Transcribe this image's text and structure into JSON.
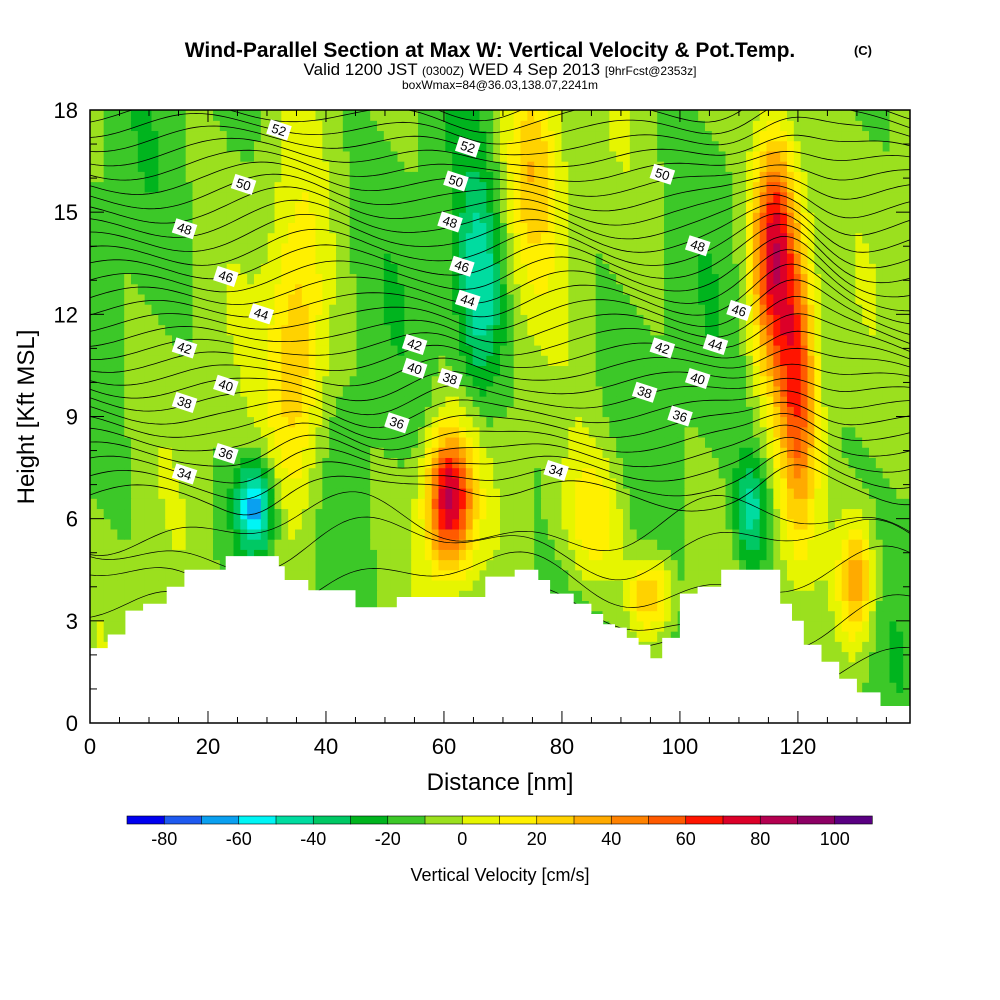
{
  "title": {
    "main": "Wind-Parallel Section at Max W: Vertical Velocity & Pot.Temp.",
    "copyright": "(C)",
    "valid_prefix": "Valid 1200 JST",
    "valid_z": "(0300Z)",
    "valid_date": "WED 4 Sep 2013",
    "fcst": "[9hrFcst@2353z]",
    "sub": "boxWmax=84@36.03,138.07,2241m"
  },
  "colorbar": {
    "label": "Vertical Velocity [cm/s]",
    "tick_labels": [
      "-80",
      "-60",
      "-40",
      "-20",
      "0",
      "20",
      "40",
      "60",
      "80",
      "100"
    ],
    "levels": [
      -80,
      -70,
      -60,
      -50,
      -40,
      -30,
      -20,
      -10,
      0,
      10,
      20,
      30,
      40,
      50,
      60,
      70,
      80,
      90,
      100,
      110
    ],
    "colors": [
      "#0000f0",
      "#1e5af0",
      "#0aa0f0",
      "#00f5f5",
      "#00dca0",
      "#00c864",
      "#00b41e",
      "#3cc828",
      "#9be01e",
      "#e6f500",
      "#fff000",
      "#ffd200",
      "#ffaa00",
      "#ff8200",
      "#ff5a00",
      "#ff1400",
      "#dc0028",
      "#b40050",
      "#8c0064",
      "#5a0082"
    ]
  },
  "chart_data": {
    "type": "heatmap",
    "xlabel": "Distance [nm]",
    "ylabel": "Height [Kft MSL]",
    "xlim": [
      0,
      139
    ],
    "ylim": [
      0,
      18
    ],
    "x_ticks": [
      "0",
      "20",
      "40",
      "60",
      "80",
      "100",
      "120"
    ],
    "y_ticks": [
      "0",
      "3",
      "6",
      "9",
      "12",
      "15",
      "18"
    ],
    "terrain": [
      [
        0,
        2.2
      ],
      [
        3,
        2.6
      ],
      [
        6,
        3.3
      ],
      [
        9,
        3.5
      ],
      [
        13,
        4.0
      ],
      [
        16,
        4.5
      ],
      [
        23,
        4.9
      ],
      [
        32,
        4.6
      ],
      [
        33,
        4.2
      ],
      [
        37,
        3.9
      ],
      [
        45,
        3.4
      ],
      [
        50,
        3.4
      ],
      [
        52,
        3.7
      ],
      [
        58,
        3.7
      ],
      [
        60,
        3.7
      ],
      [
        64,
        3.7
      ],
      [
        67,
        4.3
      ],
      [
        72,
        4.5
      ],
      [
        76,
        4.2
      ],
      [
        78,
        3.8
      ],
      [
        82,
        3.5
      ],
      [
        85,
        3.2
      ],
      [
        87,
        2.9
      ],
      [
        89,
        2.8
      ],
      [
        91,
        2.5
      ],
      [
        93,
        2.3
      ],
      [
        95,
        1.9
      ],
      [
        97,
        2.5
      ],
      [
        100,
        3.8
      ],
      [
        103,
        4.0
      ],
      [
        107,
        4.5
      ],
      [
        109,
        4.5
      ],
      [
        113,
        4.5
      ],
      [
        117,
        3.5
      ],
      [
        119,
        3.0
      ],
      [
        121,
        2.3
      ],
      [
        124,
        1.8
      ],
      [
        127,
        1.3
      ],
      [
        130,
        0.9
      ],
      [
        134,
        0.5
      ],
      [
        139,
        0.2
      ]
    ],
    "w_features": [
      {
        "x": 61,
        "y": 6.6,
        "w": 92,
        "sx": 2.8,
        "sy": 1.4
      },
      {
        "x": 116,
        "y": 14,
        "w": 88,
        "sx": 2.6,
        "sy": 2.6
      },
      {
        "x": 35,
        "y": 10.5,
        "w": 40,
        "sx": 3.5,
        "sy": 3.2
      },
      {
        "x": 28,
        "y": 6.4,
        "w": -58,
        "sx": 2.2,
        "sy": 0.9
      },
      {
        "x": 66,
        "y": 12.5,
        "w": -38,
        "sx": 2.8,
        "sy": 2.4
      },
      {
        "x": 112,
        "y": 6.2,
        "w": -35,
        "sx": 2.0,
        "sy": 1.2
      },
      {
        "x": 130,
        "y": 4.2,
        "w": 50,
        "sx": 2.2,
        "sy": 1.3
      },
      {
        "x": 95,
        "y": 3.8,
        "w": 45,
        "sx": 2.4,
        "sy": 0.8
      },
      {
        "x": 75,
        "y": 16.5,
        "w": 35,
        "sx": 3.5,
        "sy": 2.5
      },
      {
        "x": 85,
        "y": 6.0,
        "w": 30,
        "sx": 4.0,
        "sy": 1.5
      },
      {
        "x": 120,
        "y": 10,
        "w": 60,
        "sx": 2.2,
        "sy": 3.0
      }
    ],
    "theta_contours": [
      {
        "label": "34",
        "y0": 7.2,
        "pos": [
          [
            16,
            7.3
          ],
          [
            79,
            7.4
          ]
        ]
      },
      {
        "label": "36",
        "y0": 7.8,
        "pos": [
          [
            23,
            7.9
          ],
          [
            52,
            8.8
          ],
          [
            100,
            9.0
          ]
        ]
      },
      {
        "label": "38",
        "y0": 9.2,
        "pos": [
          [
            16,
            9.4
          ],
          [
            61,
            10.1
          ],
          [
            94,
            9.7
          ]
        ]
      },
      {
        "label": "40",
        "y0": 9.8,
        "pos": [
          [
            23,
            9.9
          ],
          [
            55,
            10.4
          ],
          [
            103,
            10.1
          ]
        ]
      },
      {
        "label": "42",
        "y0": 10.8,
        "pos": [
          [
            16,
            11.0
          ],
          [
            55,
            11.1
          ],
          [
            97,
            11.0
          ]
        ]
      },
      {
        "label": "44",
        "y0": 11.8,
        "pos": [
          [
            29,
            12.0
          ],
          [
            64,
            12.4
          ],
          [
            106,
            11.1
          ]
        ]
      },
      {
        "label": "46",
        "y0": 12.8,
        "pos": [
          [
            23,
            13.1
          ],
          [
            63,
            13.4
          ],
          [
            110,
            12.1
          ]
        ]
      },
      {
        "label": "48",
        "y0": 14.1,
        "pos": [
          [
            16,
            14.5
          ],
          [
            61,
            14.7
          ],
          [
            103,
            14.0
          ]
        ]
      },
      {
        "label": "50",
        "y0": 15.5,
        "pos": [
          [
            26,
            15.8
          ],
          [
            62,
            15.9
          ],
          [
            97,
            16.1
          ]
        ]
      },
      {
        "label": "52",
        "y0": 16.7,
        "pos": [
          [
            32,
            17.4
          ],
          [
            64,
            16.9
          ]
        ]
      }
    ]
  }
}
